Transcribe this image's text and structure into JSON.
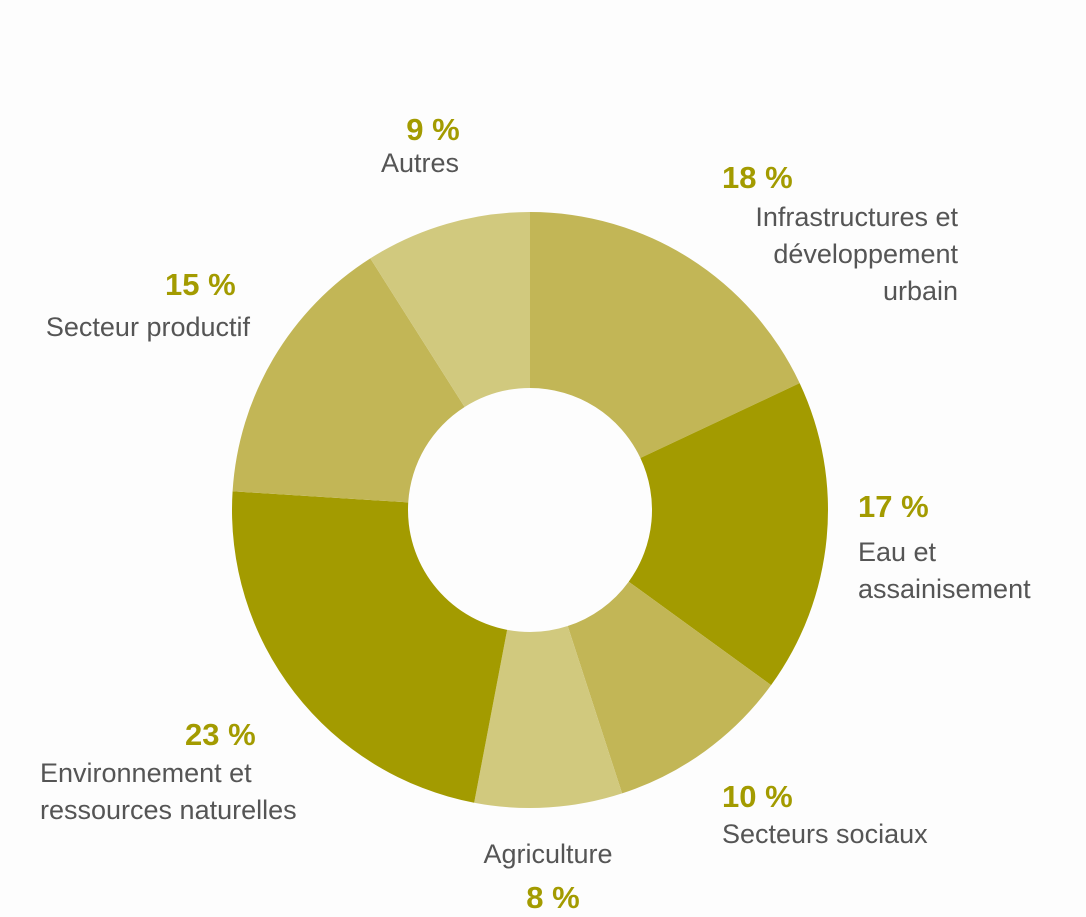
{
  "chart_data": {
    "type": "donut",
    "categories": [
      "Infrastructures et développement urbain",
      "Eau et assainisement",
      "Secteurs sociaux",
      "Agriculture",
      "Environnement et ressources naturelles",
      "Secteur productif",
      "Autres"
    ],
    "values": [
      18,
      17,
      10,
      8,
      23,
      15,
      9
    ],
    "value_labels": [
      "18 %",
      "17 %",
      "10 %",
      "8 %",
      "23 %",
      "15 %",
      "9 %"
    ],
    "colors": [
      "#c2b656",
      "#a39b00",
      "#c2b656",
      "#d1c97e",
      "#a39b00",
      "#c2b656",
      "#d1c97e"
    ]
  }
}
